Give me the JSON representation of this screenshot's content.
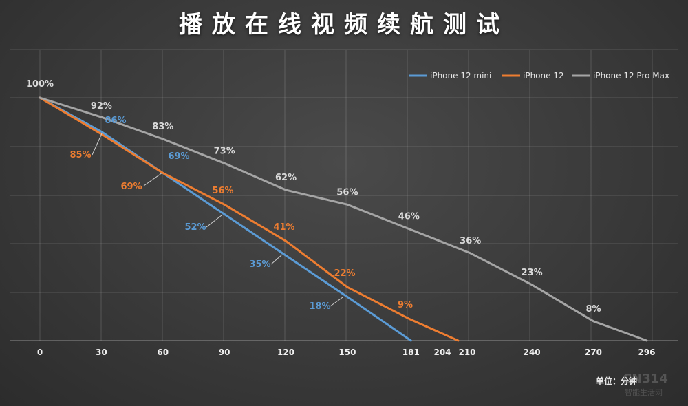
{
  "chart_data": {
    "type": "line",
    "title": "播放在线视频续航测试",
    "unit_label": "单位：分钟",
    "x_ticks": [
      0,
      30,
      60,
      90,
      120,
      150,
      181,
      204,
      210,
      240,
      270,
      296
    ],
    "xlim": [
      0,
      296
    ],
    "ylim": [
      0,
      100
    ],
    "grid": true,
    "legend_position": "top-right",
    "series": [
      {
        "name": "iPhone 12 mini",
        "color": "#5b9bd5",
        "x": [
          0,
          30,
          60,
          90,
          120,
          150,
          181
        ],
        "y": [
          100,
          86,
          69,
          52,
          35,
          18,
          0
        ],
        "labels": [
          "86%",
          "69%",
          "52%",
          "35%",
          "18%"
        ]
      },
      {
        "name": "iPhone 12",
        "color": "#ed7d31",
        "x": [
          0,
          30,
          60,
          90,
          120,
          150,
          180,
          204
        ],
        "y": [
          100,
          85,
          69,
          56,
          41,
          22,
          9,
          0
        ],
        "labels": [
          "85%",
          "69%",
          "56%",
          "41%",
          "22%",
          "9%"
        ]
      },
      {
        "name": "iPhone 12 Pro Max",
        "color": "#a5a5a5",
        "x": [
          0,
          30,
          60,
          90,
          120,
          150,
          180,
          210,
          240,
          270,
          296
        ],
        "y": [
          100,
          92,
          83,
          73,
          62,
          56,
          46,
          36,
          23,
          8,
          0
        ],
        "labels": [
          "100%",
          "92%",
          "83%",
          "73%",
          "62%",
          "56%",
          "46%",
          "36%",
          "23%",
          "8%"
        ]
      }
    ]
  },
  "watermark": {
    "main": "CN314",
    "sub": "智能生活网"
  }
}
